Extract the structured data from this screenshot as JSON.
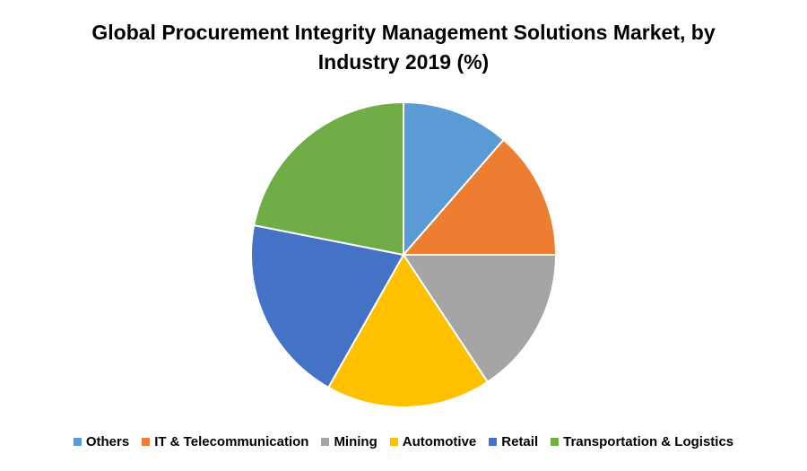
{
  "chart_data": {
    "type": "pie",
    "title": "Global Procurement Integrity Management Solutions Market, by Industry 2019 (%)",
    "categories": [
      "Others",
      "IT & Telecommunication",
      "Mining",
      "Automotive",
      "Retail",
      "Transportation & Logistics"
    ],
    "values": [
      11.4,
      13.6,
      15.7,
      17.5,
      19.9,
      21.9
    ],
    "colors": [
      "#5b9bd5",
      "#ed7d31",
      "#a5a5a5",
      "#ffc000",
      "#4472c4",
      "#70ad47"
    ],
    "legend": "bottom"
  }
}
